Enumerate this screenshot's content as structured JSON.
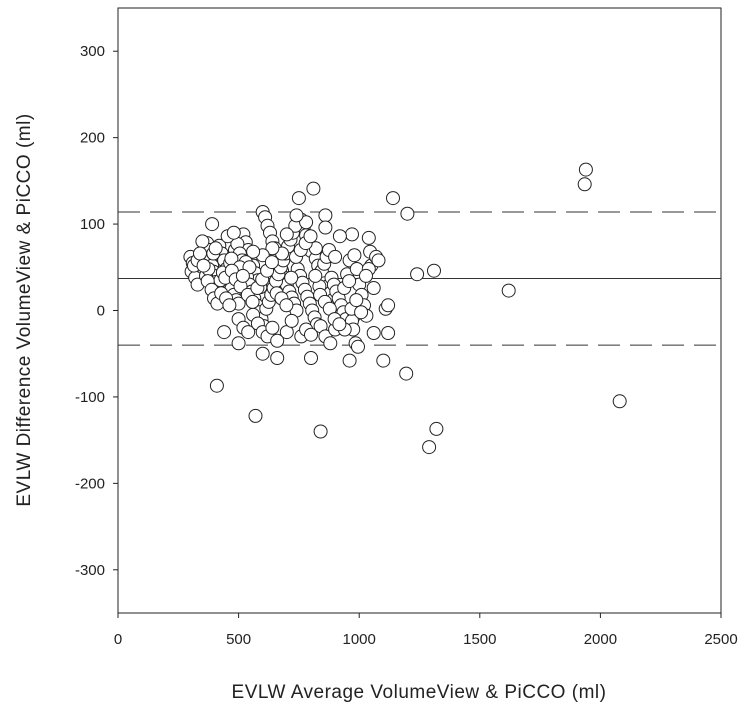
{
  "chart_data": {
    "type": "scatter",
    "title": "",
    "xlabel": "EVLW Average VolumeView & PiCCO (ml)",
    "ylabel": "EVLW Difference VolumeView & PiCCO (ml)",
    "xlim": [
      0,
      2500
    ],
    "ylim": [
      -350,
      350
    ],
    "x_ticks": [
      0,
      500,
      1000,
      1500,
      2000,
      2500
    ],
    "y_ticks": [
      -300,
      -200,
      -100,
      0,
      100,
      200,
      300
    ],
    "grid": false,
    "reference_lines": {
      "mean_difference": 37,
      "upper_limit_of_agreement": 114,
      "lower_limit_of_agreement": -40
    },
    "colors": {
      "axis": "#222222",
      "marker_fill": "#ffffff",
      "marker_edge": "#222222",
      "lines": "#333333"
    },
    "points": [
      [
        300,
        62
      ],
      [
        310,
        55
      ],
      [
        305,
        45
      ],
      [
        320,
        38
      ],
      [
        330,
        30
      ],
      [
        315,
        52
      ],
      [
        345,
        63
      ],
      [
        360,
        57
      ],
      [
        370,
        78
      ],
      [
        380,
        70
      ],
      [
        385,
        60
      ],
      [
        390,
        52
      ],
      [
        395,
        45
      ],
      [
        400,
        40
      ],
      [
        405,
        33
      ],
      [
        410,
        28
      ],
      [
        415,
        22
      ],
      [
        390,
        100
      ],
      [
        420,
        75
      ],
      [
        430,
        66
      ],
      [
        440,
        58
      ],
      [
        450,
        48
      ],
      [
        455,
        40
      ],
      [
        460,
        32
      ],
      [
        470,
        25
      ],
      [
        480,
        18
      ],
      [
        490,
        12
      ],
      [
        500,
        8
      ],
      [
        510,
        84
      ],
      [
        520,
        88
      ],
      [
        530,
        79
      ],
      [
        540,
        70
      ],
      [
        550,
        62
      ],
      [
        560,
        52
      ],
      [
        570,
        43
      ],
      [
        580,
        35
      ],
      [
        590,
        27
      ],
      [
        600,
        114
      ],
      [
        610,
        108
      ],
      [
        620,
        98
      ],
      [
        630,
        90
      ],
      [
        640,
        80
      ],
      [
        650,
        72
      ],
      [
        660,
        63
      ],
      [
        670,
        55
      ],
      [
        680,
        46
      ],
      [
        690,
        38
      ],
      [
        700,
        30
      ],
      [
        710,
        22
      ],
      [
        720,
        15
      ],
      [
        730,
        8
      ],
      [
        740,
        0
      ],
      [
        750,
        130
      ],
      [
        760,
        105
      ],
      [
        770,
        96
      ],
      [
        780,
        87
      ],
      [
        790,
        78
      ],
      [
        800,
        69
      ],
      [
        810,
        141
      ],
      [
        820,
        60
      ],
      [
        830,
        52
      ],
      [
        840,
        44
      ],
      [
        850,
        36
      ],
      [
        860,
        110
      ],
      [
        870,
        28
      ],
      [
        880,
        20
      ],
      [
        890,
        12
      ],
      [
        900,
        4
      ],
      [
        910,
        -4
      ],
      [
        920,
        -12
      ],
      [
        350,
        80
      ],
      [
        365,
        40
      ],
      [
        375,
        48
      ],
      [
        395,
        66
      ],
      [
        405,
        72
      ],
      [
        425,
        35
      ],
      [
        435,
        44
      ],
      [
        445,
        38
      ],
      [
        465,
        55
      ],
      [
        475,
        62
      ],
      [
        485,
        70
      ],
      [
        495,
        77
      ],
      [
        505,
        66
      ],
      [
        515,
        58
      ],
      [
        525,
        47
      ],
      [
        535,
        39
      ],
      [
        545,
        30
      ],
      [
        555,
        22
      ],
      [
        565,
        14
      ],
      [
        575,
        6
      ],
      [
        585,
        -2
      ],
      [
        595,
        -10
      ],
      [
        605,
        -18
      ],
      [
        615,
        2
      ],
      [
        625,
        10
      ],
      [
        635,
        18
      ],
      [
        645,
        26
      ],
      [
        655,
        34
      ],
      [
        665,
        42
      ],
      [
        675,
        50
      ],
      [
        685,
        58
      ],
      [
        695,
        66
      ],
      [
        705,
        74
      ],
      [
        715,
        82
      ],
      [
        725,
        90
      ],
      [
        735,
        98
      ],
      [
        745,
        48
      ],
      [
        755,
        40
      ],
      [
        765,
        32
      ],
      [
        775,
        24
      ],
      [
        785,
        16
      ],
      [
        795,
        8
      ],
      [
        805,
        0
      ],
      [
        815,
        -8
      ],
      [
        825,
        -16
      ],
      [
        835,
        28
      ],
      [
        845,
        46
      ],
      [
        855,
        54
      ],
      [
        865,
        62
      ],
      [
        875,
        70
      ],
      [
        885,
        38
      ],
      [
        895,
        30
      ],
      [
        905,
        22
      ],
      [
        915,
        14
      ],
      [
        925,
        6
      ],
      [
        935,
        -2
      ],
      [
        945,
        -10
      ],
      [
        955,
        -18
      ],
      [
        500,
        -10
      ],
      [
        520,
        -20
      ],
      [
        540,
        -25
      ],
      [
        560,
        -5
      ],
      [
        580,
        -15
      ],
      [
        600,
        -25
      ],
      [
        620,
        -30
      ],
      [
        640,
        -20
      ],
      [
        660,
        -35
      ],
      [
        700,
        -25
      ],
      [
        720,
        -12
      ],
      [
        760,
        -30
      ],
      [
        780,
        -22
      ],
      [
        800,
        -28
      ],
      [
        840,
        -18
      ],
      [
        860,
        -30
      ],
      [
        880,
        -38
      ],
      [
        900,
        -22
      ],
      [
        440,
        -25
      ],
      [
        500,
        -38
      ],
      [
        600,
        -50
      ],
      [
        660,
        -55
      ],
      [
        800,
        -55
      ],
      [
        960,
        -58
      ],
      [
        410,
        -87
      ],
      [
        570,
        -122
      ],
      [
        840,
        -140
      ],
      [
        1290,
        -158
      ],
      [
        1320,
        -137
      ],
      [
        1195,
        -73
      ],
      [
        1100,
        -58
      ],
      [
        2080,
        -105
      ],
      [
        950,
        42
      ],
      [
        960,
        58
      ],
      [
        970,
        88
      ],
      [
        980,
        64
      ],
      [
        990,
        48
      ],
      [
        1000,
        30
      ],
      [
        1010,
        18
      ],
      [
        1020,
        6
      ],
      [
        1030,
        -6
      ],
      [
        1040,
        84
      ],
      [
        1045,
        68
      ],
      [
        1050,
        52
      ],
      [
        1060,
        26
      ],
      [
        1070,
        62
      ],
      [
        1080,
        58
      ],
      [
        1110,
        2
      ],
      [
        1120,
        6
      ],
      [
        1120,
        -26
      ],
      [
        1060,
        -26
      ],
      [
        980,
        -6
      ],
      [
        970,
        -12
      ],
      [
        975,
        -22
      ],
      [
        985,
        -38
      ],
      [
        995,
        -42
      ],
      [
        940,
        -22
      ],
      [
        1040,
        48
      ],
      [
        1140,
        130
      ],
      [
        1200,
        112
      ],
      [
        1240,
        42
      ],
      [
        1310,
        46
      ],
      [
        1620,
        23
      ],
      [
        1940,
        163
      ],
      [
        1935,
        146
      ],
      [
        900,
        62
      ],
      [
        920,
        86
      ],
      [
        860,
        96
      ],
      [
        820,
        72
      ],
      [
        780,
        102
      ],
      [
        740,
        110
      ],
      [
        700,
        88
      ],
      [
        680,
        66
      ],
      [
        640,
        72
      ],
      [
        600,
        64
      ],
      [
        560,
        68
      ],
      [
        530,
        56
      ],
      [
        470,
        60
      ],
      [
        455,
        86
      ],
      [
        480,
        90
      ],
      [
        505,
        50
      ],
      [
        545,
        50
      ],
      [
        330,
        58
      ],
      [
        340,
        66
      ],
      [
        355,
        52
      ],
      [
        372,
        34
      ],
      [
        388,
        24
      ],
      [
        398,
        14
      ],
      [
        412,
        8
      ],
      [
        428,
        20
      ],
      [
        448,
        14
      ],
      [
        462,
        6
      ],
      [
        472,
        46
      ],
      [
        488,
        36
      ],
      [
        508,
        28
      ],
      [
        518,
        40
      ],
      [
        538,
        18
      ],
      [
        558,
        10
      ],
      [
        578,
        26
      ],
      [
        598,
        36
      ],
      [
        618,
        46
      ],
      [
        638,
        56
      ],
      [
        658,
        20
      ],
      [
        678,
        14
      ],
      [
        698,
        6
      ],
      [
        718,
        38
      ],
      [
        738,
        62
      ],
      [
        758,
        70
      ],
      [
        778,
        78
      ],
      [
        798,
        86
      ],
      [
        818,
        40
      ],
      [
        838,
        18
      ],
      [
        858,
        10
      ],
      [
        878,
        2
      ],
      [
        898,
        -10
      ],
      [
        918,
        -16
      ],
      [
        938,
        26
      ],
      [
        958,
        34
      ],
      [
        968,
        2
      ],
      [
        988,
        12
      ],
      [
        1008,
        -2
      ],
      [
        1028,
        40
      ]
    ]
  }
}
